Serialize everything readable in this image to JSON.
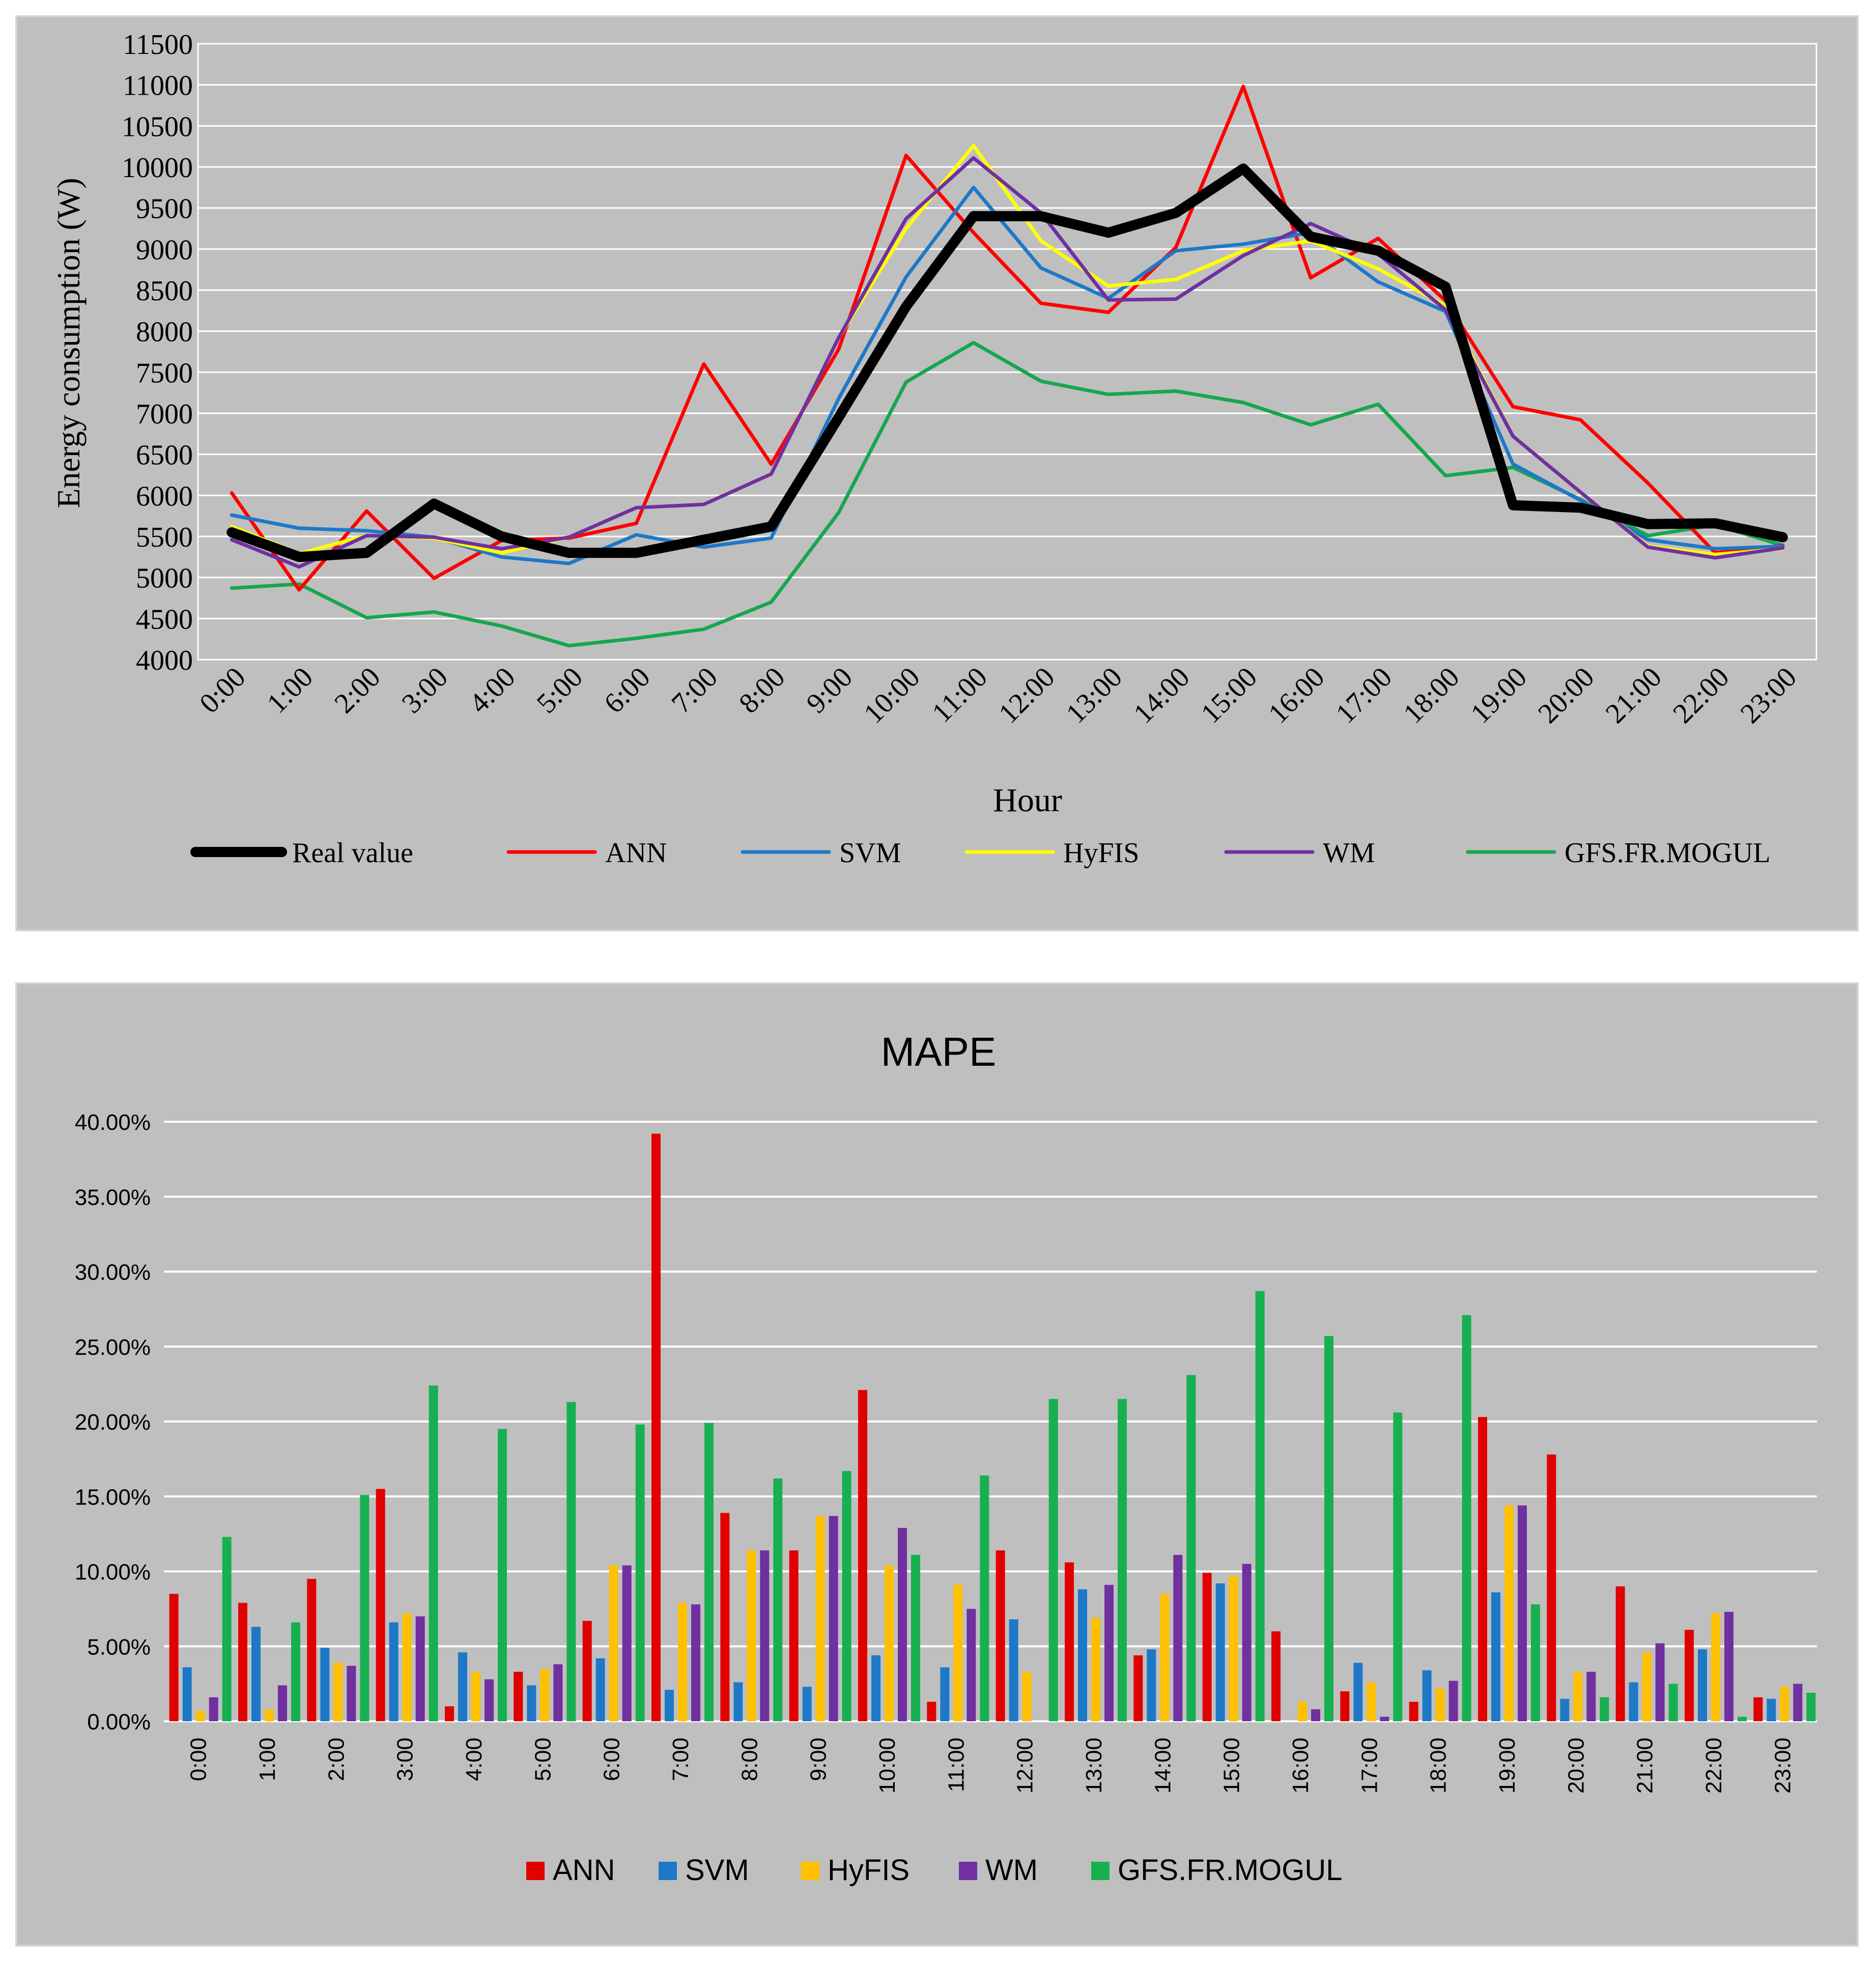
{
  "chart_data": [
    {
      "type": "line",
      "title": "",
      "xlabel": "Hour",
      "ylabel": "Energy consumption (W)",
      "ylim": [
        4000,
        11500
      ],
      "yticks": [
        "4000",
        "4500",
        "5000",
        "5500",
        "6000",
        "6500",
        "7000",
        "7500",
        "8000",
        "8500",
        "9000",
        "9500",
        "10000",
        "10500",
        "11000",
        "11500"
      ],
      "categories": [
        "0:00",
        "1:00",
        "2:00",
        "3:00",
        "4:00",
        "5:00",
        "6:00",
        "7:00",
        "8:00",
        "9:00",
        "10:00",
        "11:00",
        "12:00",
        "13:00",
        "14:00",
        "15:00",
        "16:00",
        "17:00",
        "18:00",
        "19:00",
        "20:00",
        "21:00",
        "22:00",
        "23:00"
      ],
      "legend_position": "bottom",
      "series": [
        {
          "name": "Real value",
          "color": "#000000",
          "width": "thick",
          "values": [
            5550,
            5250,
            5300,
            5900,
            5500,
            5300,
            5300,
            5460,
            5620,
            6950,
            8300,
            9400,
            9400,
            9200,
            9440,
            9980,
            9150,
            8980,
            8540,
            5880,
            5850,
            5650,
            5660,
            5490
          ]
        },
        {
          "name": "ANN",
          "color": "#ff0000",
          "values": [
            6030,
            4850,
            5810,
            4990,
            5450,
            5480,
            5660,
            7600,
            6380,
            7780,
            10140,
            9200,
            8340,
            8230,
            9020,
            10980,
            8650,
            9130,
            8370,
            7080,
            6920,
            6150,
            5300,
            5390
          ]
        },
        {
          "name": "SVM",
          "color": "#1e78c8",
          "values": [
            5760,
            5600,
            5570,
            5490,
            5250,
            5170,
            5520,
            5370,
            5480,
            7180,
            8660,
            9750,
            8770,
            8400,
            8980,
            9060,
            9200,
            8600,
            8240,
            6380,
            5940,
            5460,
            5350,
            5380
          ]
        },
        {
          "name": "HyFIS",
          "color": "#ffff00",
          "values": [
            5620,
            5290,
            5510,
            5480,
            5300,
            5490,
            5850,
            5890,
            6260,
            7920,
            9250,
            10260,
            9100,
            8550,
            8630,
            8980,
            9100,
            8760,
            8310,
            6720,
            6040,
            5380,
            5280,
            5350
          ]
        },
        {
          "name": "WM",
          "color": "#7030a0",
          "values": [
            5460,
            5130,
            5510,
            5490,
            5350,
            5490,
            5850,
            5890,
            6260,
            7920,
            9370,
            10110,
            9440,
            8380,
            8390,
            8920,
            9310,
            8940,
            8260,
            6720,
            6040,
            5370,
            5240,
            5360
          ]
        },
        {
          "name": "GFS.FR.MOGUL",
          "color": "#17a650",
          "values": [
            4870,
            4920,
            4510,
            4580,
            4410,
            4170,
            4260,
            4370,
            4700,
            5790,
            7380,
            7860,
            7390,
            7230,
            7270,
            7130,
            6860,
            7110,
            6240,
            6340,
            5950,
            5510,
            5640,
            5390
          ]
        }
      ]
    },
    {
      "type": "bar",
      "title": "MAPE",
      "xlabel": "",
      "ylabel": "",
      "ylim": [
        0,
        40
      ],
      "yticks": [
        "0.00%",
        "5.00%",
        "10.00%",
        "15.00%",
        "20.00%",
        "25.00%",
        "30.00%",
        "35.00%",
        "40.00%"
      ],
      "categories": [
        "0:00",
        "1:00",
        "2:00",
        "3:00",
        "4:00",
        "5:00",
        "6:00",
        "7:00",
        "8:00",
        "9:00",
        "10:00",
        "11:00",
        "12:00",
        "13:00",
        "14:00",
        "15:00",
        "16:00",
        "17:00",
        "18:00",
        "19:00",
        "20:00",
        "21:00",
        "22:00",
        "23:00"
      ],
      "legend_position": "bottom",
      "series": [
        {
          "name": "ANN",
          "color": "#e00000",
          "values": [
            8.5,
            7.9,
            9.5,
            15.5,
            1.0,
            3.3,
            6.7,
            39.2,
            13.9,
            11.4,
            22.1,
            1.3,
            11.4,
            10.6,
            4.4,
            9.9,
            6.0,
            2.0,
            1.3,
            20.3,
            17.8,
            9.0,
            6.1,
            1.6
          ]
        },
        {
          "name": "SVM",
          "color": "#1e78c8",
          "values": [
            3.6,
            6.3,
            4.9,
            6.6,
            4.6,
            2.4,
            4.2,
            2.1,
            2.6,
            2.3,
            4.4,
            3.6,
            6.8,
            8.8,
            4.8,
            9.2,
            0.0,
            3.9,
            3.4,
            8.6,
            1.5,
            2.6,
            4.8,
            1.5
          ]
        },
        {
          "name": "HyFIS",
          "color": "#ffc000",
          "values": [
            0.7,
            0.8,
            3.9,
            7.2,
            3.3,
            3.5,
            10.4,
            7.9,
            11.4,
            13.7,
            10.4,
            9.1,
            3.3,
            6.9,
            8.5,
            9.7,
            1.3,
            2.6,
            2.2,
            14.4,
            3.3,
            4.6,
            7.2,
            2.3
          ]
        },
        {
          "name": "WM",
          "color": "#7030a0",
          "values": [
            1.6,
            2.4,
            3.7,
            7.0,
            2.8,
            3.8,
            10.4,
            7.8,
            11.4,
            13.7,
            12.9,
            7.5,
            0.0,
            9.1,
            11.1,
            10.5,
            0.8,
            0.3,
            2.7,
            14.4,
            3.3,
            5.2,
            7.3,
            2.5
          ]
        },
        {
          "name": "GFS.FR.MOGUL",
          "color": "#17b050",
          "values": [
            12.3,
            6.6,
            15.1,
            22.4,
            19.5,
            21.3,
            19.8,
            19.9,
            16.2,
            16.7,
            11.1,
            16.4,
            21.5,
            21.5,
            23.1,
            28.7,
            25.7,
            20.6,
            27.1,
            7.8,
            1.6,
            2.5,
            0.3,
            1.9
          ]
        }
      ]
    }
  ]
}
